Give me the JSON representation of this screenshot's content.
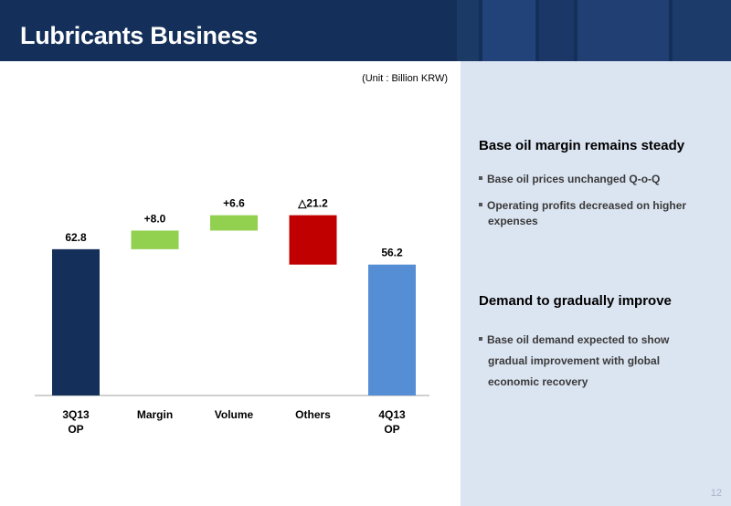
{
  "header": {
    "title": "Lubricants Business"
  },
  "unit_note": "(Unit : Billion KRW)",
  "chart_data": {
    "type": "bar",
    "subtype": "waterfall",
    "categories": [
      "3Q13\nOP",
      "Margin",
      "Volume",
      "Others",
      "4Q13\nOP"
    ],
    "values": [
      62.8,
      8.0,
      6.6,
      -21.2,
      56.2
    ],
    "value_labels": [
      "62.8",
      "+8.0",
      "+6.6",
      "△21.2",
      "56.2"
    ],
    "bar_kinds": [
      "total",
      "increase",
      "increase",
      "decrease",
      "total"
    ],
    "colors": {
      "start_total": "#14305a",
      "increase": "#92d050",
      "decrease": "#c00000",
      "end_total": "#558ed5"
    },
    "ylim": [
      0,
      100
    ],
    "legend": "none",
    "grid": false
  },
  "side_panel": {
    "sections": [
      {
        "heading": "Base oil margin remains steady",
        "bullets": [
          "Base oil prices unchanged Q-o-Q",
          "Operating profits decreased on higher expenses"
        ]
      },
      {
        "heading": "Demand to gradually improve",
        "bullets": [
          "Base oil demand expected to show gradual improvement with global economic recovery"
        ]
      }
    ],
    "page_number": "12"
  }
}
